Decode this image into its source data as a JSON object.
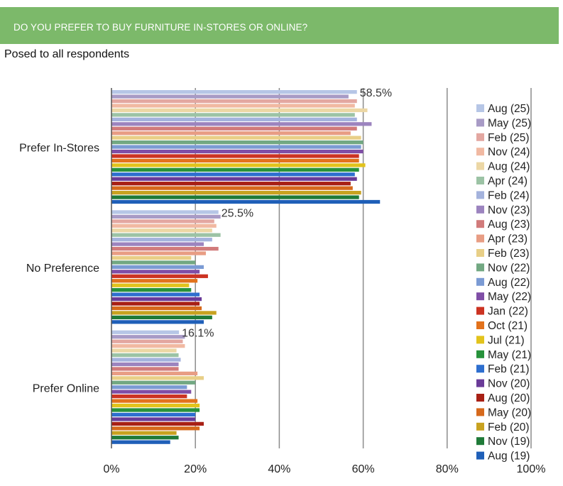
{
  "header": {
    "title": "DO YOU PREFER TO BUY FURNITURE IN-STORES OR ONLINE?"
  },
  "subtitle": "Posed to all respondents",
  "chart_data": {
    "type": "bar",
    "orientation": "horizontal",
    "xlim": [
      0,
      100
    ],
    "x_ticks": [
      "0%",
      "20%",
      "40%",
      "60%",
      "80%",
      "100%"
    ],
    "grid": "vertical",
    "legend_position": "right",
    "categories": [
      "Prefer In-Stores",
      "No Preference",
      "Prefer Online"
    ],
    "data_labels": [
      "58.5%",
      "25.5%",
      "16.1%"
    ],
    "series": [
      {
        "name": "Aug (25)",
        "color": "#b6c6e6",
        "values": [
          58.5,
          25.5,
          16.1
        ]
      },
      {
        "name": "May (25)",
        "color": "#a89bc6",
        "values": [
          56.5,
          26.0,
          17.5
        ]
      },
      {
        "name": "Feb (25)",
        "color": "#e3a7a1",
        "values": [
          58.5,
          24.5,
          17.0
        ]
      },
      {
        "name": "Nov (24)",
        "color": "#f1b9a2",
        "values": [
          58.0,
          25.0,
          17.5
        ]
      },
      {
        "name": "Aug (24)",
        "color": "#ecd7a5",
        "values": [
          61.0,
          24.0,
          15.5
        ]
      },
      {
        "name": "Apr (24)",
        "color": "#9cc3a5",
        "values": [
          58.0,
          26.0,
          16.0
        ]
      },
      {
        "name": "Feb (24)",
        "color": "#a4b3dd",
        "values": [
          58.5,
          24.0,
          16.5
        ]
      },
      {
        "name": "Nov (23)",
        "color": "#9c84bf",
        "values": [
          62.0,
          22.0,
          16.0
        ]
      },
      {
        "name": "Aug (23)",
        "color": "#d17b7b",
        "values": [
          58.5,
          25.5,
          16.0
        ]
      },
      {
        "name": "Apr (23)",
        "color": "#e89d84",
        "values": [
          57.0,
          22.5,
          20.5
        ]
      },
      {
        "name": "Feb (23)",
        "color": "#e8cf87",
        "values": [
          59.5,
          19.0,
          22.0
        ]
      },
      {
        "name": "Nov (22)",
        "color": "#72a882",
        "values": [
          60.0,
          20.0,
          20.0
        ]
      },
      {
        "name": "Aug (22)",
        "color": "#7b9bd4",
        "values": [
          59.5,
          22.0,
          18.0
        ]
      },
      {
        "name": "May (22)",
        "color": "#7f4ea6",
        "values": [
          60.0,
          21.0,
          19.0
        ]
      },
      {
        "name": "Jan (22)",
        "color": "#cc3322",
        "values": [
          59.0,
          23.0,
          18.0
        ]
      },
      {
        "name": "Oct (21)",
        "color": "#e2721c",
        "values": [
          59.0,
          20.5,
          20.5
        ]
      },
      {
        "name": "Jul (21)",
        "color": "#e2c31c",
        "values": [
          60.5,
          18.5,
          21.0
        ]
      },
      {
        "name": "May (21)",
        "color": "#27923b",
        "values": [
          59.0,
          19.0,
          21.0
        ]
      },
      {
        "name": "Feb (21)",
        "color": "#2e6fcf",
        "values": [
          58.0,
          21.0,
          20.0
        ]
      },
      {
        "name": "Nov (20)",
        "color": "#6a3b98",
        "values": [
          58.5,
          21.5,
          20.0
        ]
      },
      {
        "name": "Aug (20)",
        "color": "#a82015",
        "values": [
          57.0,
          21.0,
          22.0
        ]
      },
      {
        "name": "May (20)",
        "color": "#d6691c",
        "values": [
          57.5,
          21.5,
          21.0
        ]
      },
      {
        "name": "Feb (20)",
        "color": "#c8a220",
        "values": [
          59.5,
          25.0,
          15.5
        ]
      },
      {
        "name": "Nov (19)",
        "color": "#1f7a38",
        "values": [
          59.0,
          24.0,
          16.0
        ]
      },
      {
        "name": "Aug (19)",
        "color": "#1f5fb8",
        "values": [
          64.0,
          22.0,
          14.0
        ]
      }
    ]
  }
}
